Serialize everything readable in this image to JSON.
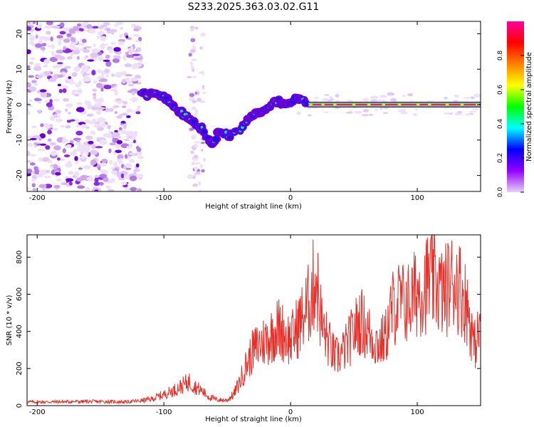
{
  "title": "S233.2025.363.03.02.G11",
  "chart_data": [
    {
      "type": "heatmap",
      "name": "spectrogram",
      "xlabel": "Height of straight line (km)",
      "ylabel": "Frequency (Hz)",
      "xlim": [
        -208,
        150
      ],
      "ylim": [
        -24.5,
        23.5
      ],
      "x_ticks": [
        -200,
        -100,
        0,
        100
      ],
      "y_ticks": [
        -20,
        -10,
        0,
        10,
        20
      ],
      "ridge": {
        "x": [
          -118,
          -110,
          -100,
          -90,
          -80,
          -70,
          -62,
          -55,
          -48,
          -40,
          -30,
          -20,
          -10,
          0,
          5,
          10,
          15,
          20,
          150
        ],
        "y": [
          3,
          3,
          2,
          -1,
          -4,
          -7,
          -11,
          -7,
          -9,
          -7,
          -3,
          -1,
          1,
          0,
          2,
          1,
          0,
          0,
          0
        ]
      },
      "colorbar": {
        "label": "Normalized spectral amplitude",
        "range": [
          0.0,
          1.0
        ],
        "ticks": [
          0.0,
          0.2,
          0.4,
          0.6,
          0.8
        ],
        "colors": [
          "#e6d2f5",
          "#9400ff",
          "#0000ff",
          "#00ffff",
          "#00ff00",
          "#ffff00",
          "#ff8000",
          "#ff0000",
          "#ff00a0"
        ]
      }
    },
    {
      "type": "line",
      "name": "snr",
      "xlabel": "Height of straight line (km)",
      "ylabel": "SNR (10 * v/v)",
      "xlim": [
        -208,
        150
      ],
      "ylim": [
        0,
        920
      ],
      "x_ticks": [
        -200,
        -100,
        0,
        100
      ],
      "y_ticks": [
        0,
        200,
        400,
        600,
        800
      ],
      "color": "#e8302a",
      "series": [
        {
          "name": "SNR",
          "x": [
            -208,
            -190,
            -170,
            -150,
            -130,
            -120,
            -110,
            -100,
            -90,
            -80,
            -75,
            -70,
            -65,
            -60,
            -55,
            -50,
            -45,
            -40,
            -35,
            -30,
            -25,
            -20,
            -15,
            -10,
            -5,
            0,
            5,
            10,
            15,
            20,
            25,
            30,
            35,
            40,
            45,
            50,
            55,
            60,
            65,
            70,
            75,
            80,
            85,
            90,
            95,
            100,
            105,
            110,
            115,
            120,
            125,
            130,
            135,
            140,
            145,
            150
          ],
          "y": [
            20,
            20,
            22,
            22,
            20,
            25,
            35,
            60,
            90,
            130,
            100,
            80,
            50,
            35,
            30,
            30,
            60,
            130,
            220,
            290,
            330,
            350,
            380,
            420,
            390,
            350,
            420,
            480,
            560,
            700,
            420,
            340,
            260,
            280,
            330,
            400,
            460,
            410,
            360,
            330,
            370,
            520,
            560,
            550,
            560,
            620,
            640,
            680,
            660,
            600,
            650,
            680,
            620,
            520,
            320,
            420
          ]
        }
      ]
    }
  ]
}
